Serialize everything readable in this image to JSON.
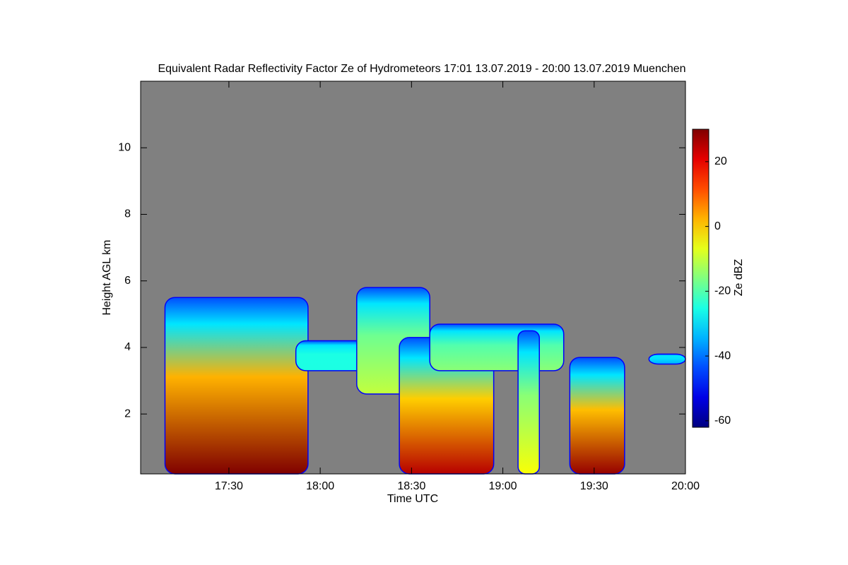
{
  "chart_data": {
    "type": "heatmap",
    "title": "Equivalent Radar Reflectivity Factor Ze of Hydrometeors   17:01 13.07.2019 - 20:00 13.07.2019 Muenchen",
    "x_label": "Time UTC",
    "y_label": "Height AGL km",
    "colorbar_label": "Ze dBZ",
    "xlim": [
      1021,
      1200
    ],
    "xticks": [
      {
        "value": 1050,
        "label": "17:30"
      },
      {
        "value": 1080,
        "label": "18:00"
      },
      {
        "value": 1110,
        "label": "18:30"
      },
      {
        "value": 1140,
        "label": "19:00"
      },
      {
        "value": 1170,
        "label": "19:30"
      },
      {
        "value": 1200,
        "label": "20:00"
      }
    ],
    "ylim": [
      0.2,
      12
    ],
    "yticks": [
      2,
      4,
      6,
      8,
      10
    ],
    "zlim": [
      -62,
      30
    ],
    "zticks": [
      -60,
      -40,
      -20,
      0,
      20
    ],
    "background_color": "#808080",
    "echoes": [
      {
        "start": 1029,
        "end": 1076,
        "base": 0.2,
        "top": 5.5,
        "ze": 30
      },
      {
        "start": 1072,
        "end": 1105,
        "base": 3.3,
        "top": 4.2,
        "ze": -25
      },
      {
        "start": 1092,
        "end": 1116,
        "base": 2.6,
        "top": 5.8,
        "ze": -10
      },
      {
        "start": 1106,
        "end": 1137,
        "base": 0.2,
        "top": 4.3,
        "ze": 25
      },
      {
        "start": 1116,
        "end": 1160,
        "base": 3.3,
        "top": 4.7,
        "ze": -15
      },
      {
        "start": 1145,
        "end": 1152,
        "base": 0.2,
        "top": 4.5,
        "ze": -5
      },
      {
        "start": 1162,
        "end": 1180,
        "base": 0.2,
        "top": 3.7,
        "ze": 28
      },
      {
        "start": 1188,
        "end": 1200,
        "base": 3.5,
        "top": 3.8,
        "ze": -35
      }
    ]
  }
}
